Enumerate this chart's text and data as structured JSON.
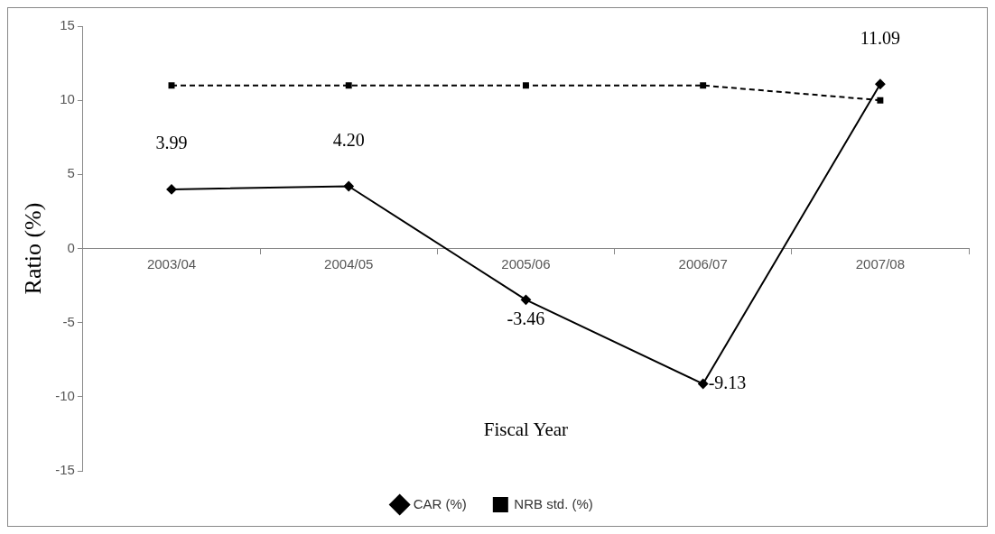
{
  "chart_data": {
    "type": "line",
    "xlabel": "Fiscal Year",
    "ylabel": "Ratio (%)",
    "categories": [
      "2003/04",
      "2004/05",
      "2005/06",
      "2006/07",
      "2007/08"
    ],
    "series": [
      {
        "name": "CAR (%)",
        "color": "#000000",
        "values": [
          3.99,
          4.2,
          -3.46,
          -9.13,
          11.09
        ],
        "value_labels": [
          "3.99",
          "4.20",
          "-3.46",
          "-9.13",
          "11.09"
        ],
        "marker": "diamond",
        "line_style": "solid"
      },
      {
        "name": "NRB std. (%)",
        "color": "#000000",
        "values": [
          11,
          11,
          11,
          11,
          10
        ],
        "marker": "square",
        "line_style": "dashed"
      }
    ],
    "ylim": [
      -15,
      15
    ],
    "yticks": [
      -15,
      -10,
      -5,
      0,
      5,
      10,
      15
    ],
    "grid": false,
    "legend": "bottom"
  }
}
